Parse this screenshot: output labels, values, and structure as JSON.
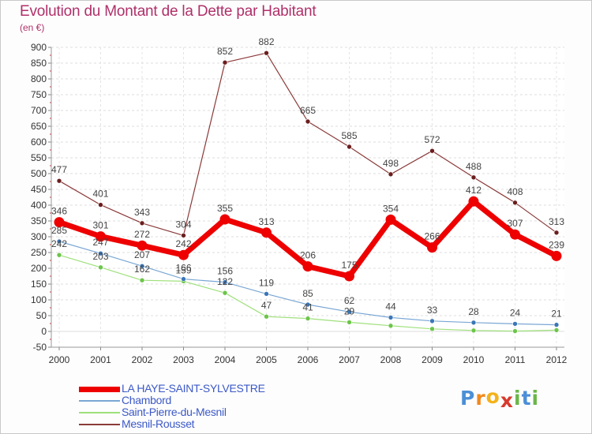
{
  "header": {
    "title": "Evolution du Montant de la Dette par Habitant",
    "unit": "(en €)"
  },
  "colors": {
    "title": "#b0306a",
    "legend_text": "#3c59c7"
  },
  "logo": {
    "letters": [
      "P",
      "r",
      "o",
      "x",
      "i",
      "t",
      "i"
    ],
    "colors": [
      "#4b8fd6",
      "#f08a1c",
      "#f4b21a",
      "#d83a2e",
      "#6bb64a",
      "#4b8fd6",
      "#6bb64a"
    ]
  },
  "chart_data": {
    "type": "line",
    "x": [
      "2000",
      "2001",
      "2002",
      "2003",
      "2004",
      "2005",
      "2006",
      "2007",
      "2008",
      "2009",
      "2010",
      "2011",
      "2012"
    ],
    "ylim": [
      -50,
      900
    ],
    "yticks": [
      "-50",
      "0",
      "50",
      "100",
      "150",
      "200",
      "250",
      "300",
      "350",
      "400",
      "450",
      "500",
      "550",
      "600",
      "650",
      "700",
      "750",
      "800",
      "850",
      "900"
    ],
    "grid": true,
    "legend_position": "bottom-left",
    "series": [
      {
        "name": "LA HAYE-SAINT-SYLVESTRE",
        "color": "#ee0000",
        "marker": "#ee0000",
        "values": [
          346,
          301,
          272,
          242,
          355,
          313,
          206,
          175,
          354,
          266,
          412,
          307,
          239
        ],
        "labels": [
          "346",
          "301",
          "272",
          "242",
          "355",
          "313",
          "206",
          "175",
          "354",
          "266",
          "412",
          "307",
          "239"
        ]
      },
      {
        "name": "Chambord",
        "color": "#7aa7d4",
        "marker": "#3b76b8",
        "values": [
          285,
          247,
          207,
          166,
          156,
          119,
          85,
          62,
          44,
          33,
          28,
          24,
          21
        ],
        "labels": [
          "285",
          "247",
          "207",
          "166",
          "156",
          "119",
          "85",
          "62",
          "44",
          "33",
          "28",
          "24",
          "21"
        ]
      },
      {
        "name": "Saint-Pierre-du-Mesnil",
        "color": "#9ee07a",
        "marker": "#6cc54a",
        "values": [
          242,
          203,
          162,
          159,
          122,
          47,
          41,
          29,
          18,
          8,
          3,
          1,
          4
        ],
        "labels": [
          "242",
          "203",
          "162",
          "159",
          "122",
          "47",
          "41",
          "29",
          "",
          "",
          "",
          "",
          ""
        ]
      },
      {
        "name": "Mesnil-Rousset",
        "color": "#8b3a3a",
        "marker": "#6b1e1e",
        "values": [
          477,
          401,
          343,
          304,
          852,
          882,
          665,
          585,
          498,
          572,
          488,
          408,
          313
        ],
        "labels": [
          "477",
          "401",
          "343",
          "304",
          "852",
          "882",
          "665",
          "585",
          "498",
          "572",
          "488",
          "408",
          "313"
        ]
      }
    ]
  }
}
